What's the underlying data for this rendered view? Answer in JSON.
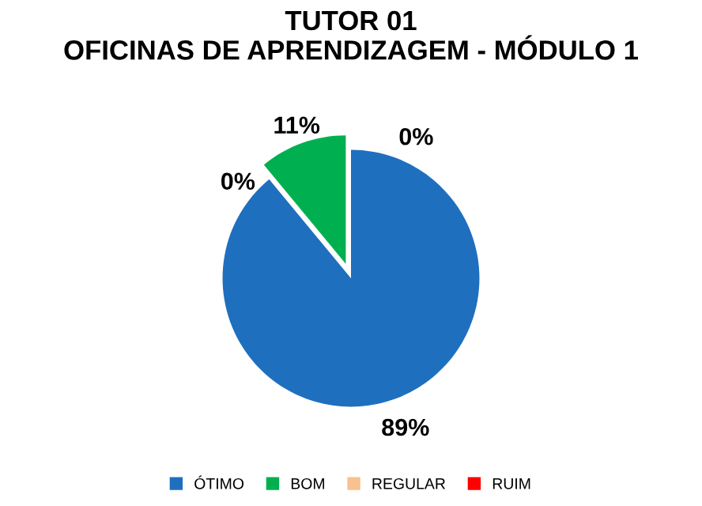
{
  "chart_data": {
    "type": "pie",
    "title": "TUTOR 01\nOFICINAS DE APRENDIZAGEM - MÓDULO 1",
    "categories": [
      "ÓTIMO",
      "BOM",
      "REGULAR",
      "RUIM"
    ],
    "values": [
      89,
      11,
      0,
      0
    ],
    "colors": [
      "#1f6fbf",
      "#00b050",
      "#fac090",
      "#ff0000"
    ],
    "value_labels": [
      "89%",
      "11%",
      "0%",
      "0%"
    ],
    "legend": "bottom"
  }
}
